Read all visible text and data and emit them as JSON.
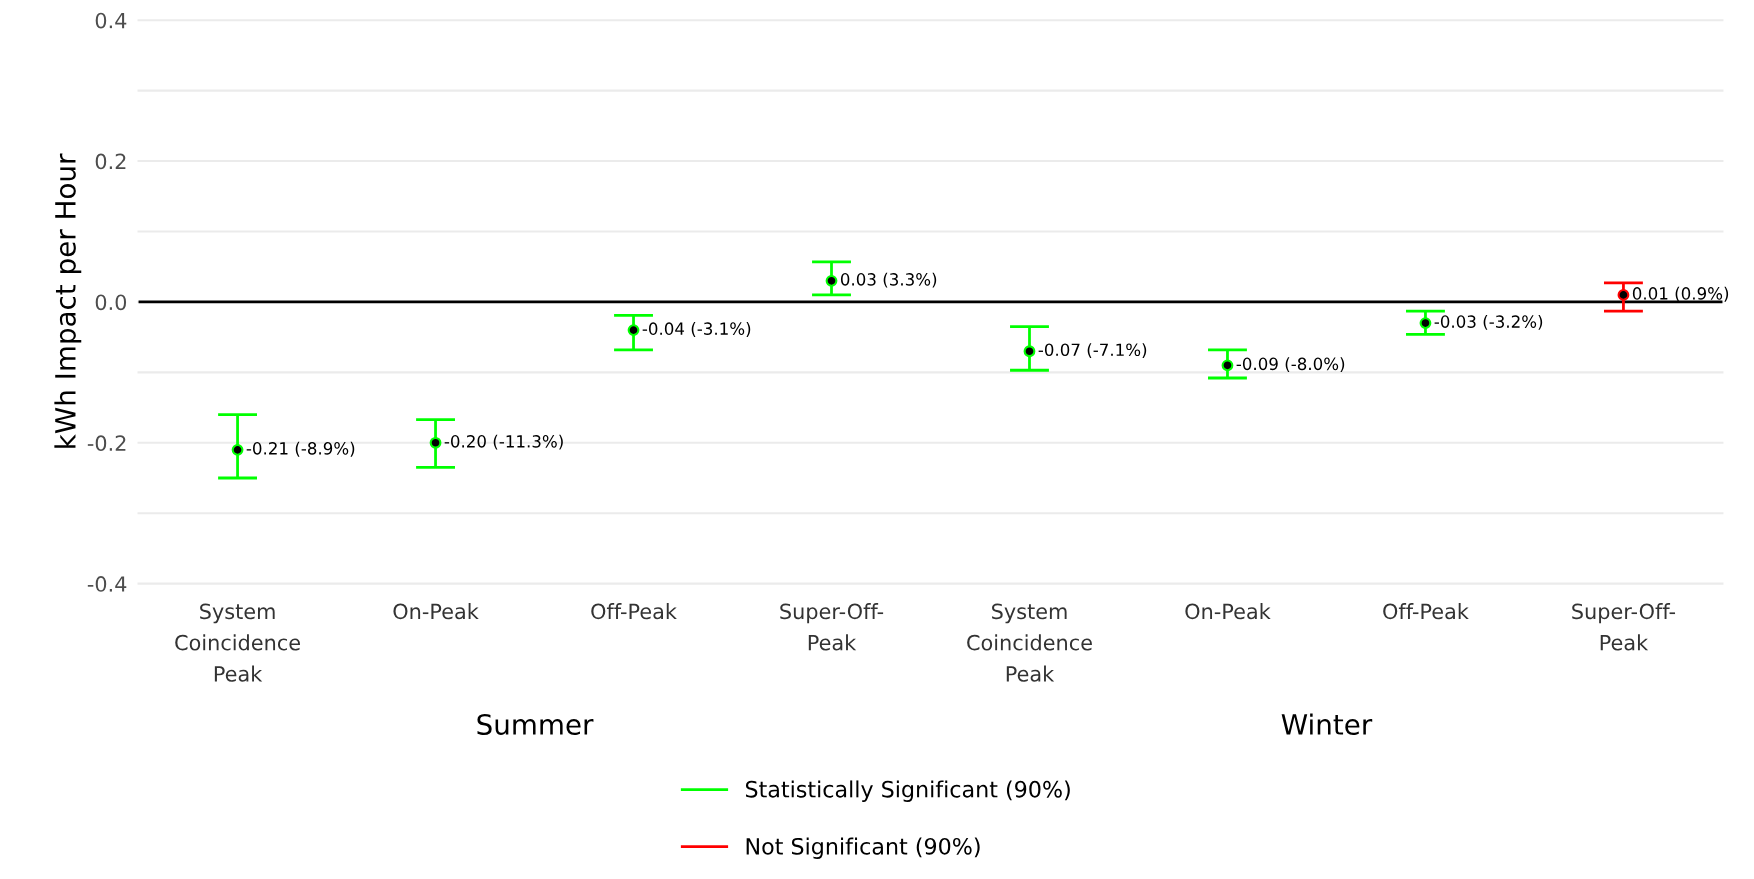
{
  "chart_data": {
    "type": "scatter",
    "ylabel": "kWh Impact per Hour",
    "categories": [
      "System\nCoincidence\nPeak",
      "On-Peak",
      "Off-Peak",
      "Super-Off-\nPeak",
      "System\nCoincidence\nPeak",
      "On-Peak",
      "Off-Peak",
      "Super-Off-\nPeak"
    ],
    "series": [
      {
        "name": "Statistically Significant (90%)",
        "color": "#00ff00",
        "values": [
          -0.21,
          -0.2,
          -0.04,
          0.03,
          -0.07,
          -0.09,
          -0.03,
          null
        ],
        "errors": [
          [
            -0.25,
            -0.16
          ],
          [
            -0.235,
            -0.167
          ],
          [
            -0.068,
            -0.019
          ],
          [
            0.01,
            0.057
          ],
          [
            -0.097,
            -0.035
          ],
          [
            -0.108,
            -0.068
          ],
          [
            -0.046,
            -0.013
          ],
          null
        ],
        "value_labels": [
          "-0.21 (-8.9%)",
          "-0.20 (-11.3%)",
          "-0.04 (-3.1%)",
          "0.03 (3.3%)",
          "-0.07 (-7.1%)",
          "-0.09 (-8.0%)",
          "-0.03 (-3.2%)",
          null
        ]
      },
      {
        "name": "Not Significant (90%)",
        "color": "#ff0000",
        "values": [
          null,
          null,
          null,
          null,
          null,
          null,
          null,
          0.01
        ],
        "errors": [
          null,
          null,
          null,
          null,
          null,
          null,
          null,
          [
            -0.013,
            0.027
          ]
        ],
        "value_labels": [
          null,
          null,
          null,
          null,
          null,
          null,
          null,
          "0.01 (0.9%)"
        ]
      }
    ],
    "annotations": [
      "Summer",
      "Winter"
    ],
    "ylim": [
      -0.4,
      0.4
    ],
    "yticks": [
      -0.4,
      {
        "value": -0.3,
        "label": null
      },
      -0.2,
      {
        "value": -0.1,
        "label": null
      },
      {
        "value": 0,
        "label": "0.0"
      },
      {
        "value": 0.1,
        "label": null
      },
      0.2,
      {
        "value": 0.3,
        "label": null
      },
      0.4
    ],
    "ref_lines": [
      {
        "axis": "y",
        "value": 0,
        "color": "#000000"
      }
    ],
    "grid": "y",
    "legend": "bottom",
    "marker": "circle"
  }
}
